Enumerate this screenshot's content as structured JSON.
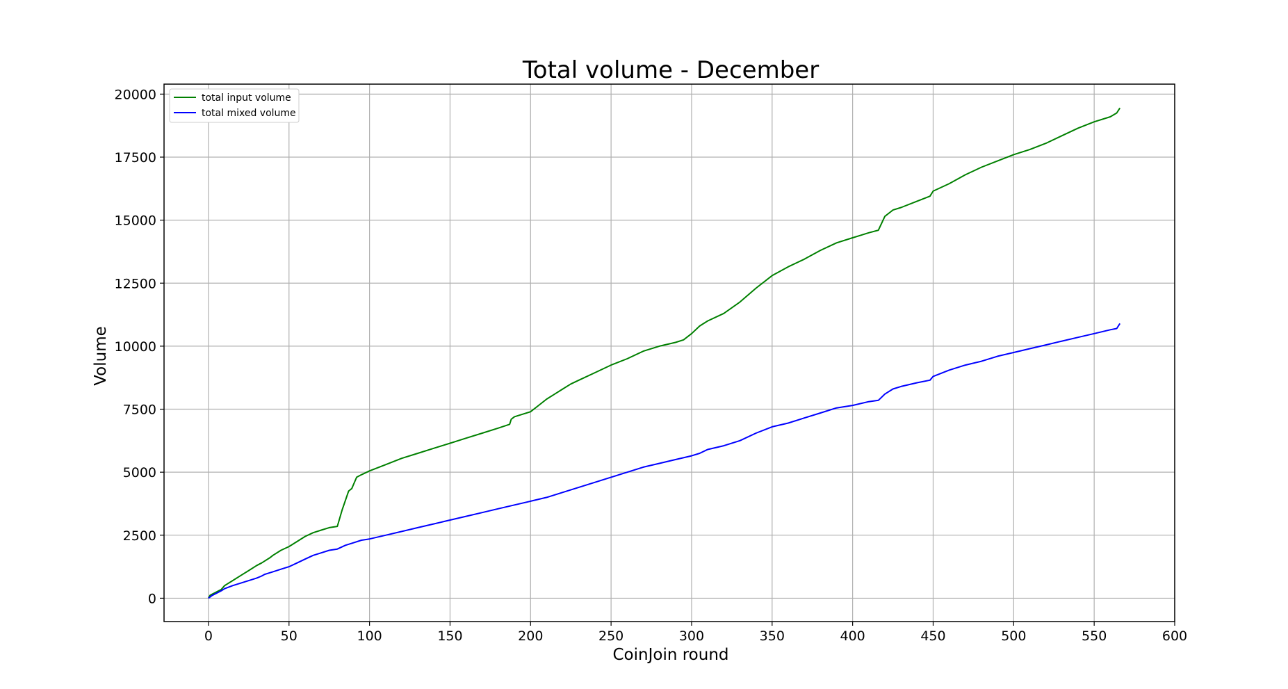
{
  "chart_data": {
    "type": "line",
    "title": "Total volume - December",
    "xlabel": "CoinJoin round",
    "ylabel": "Volume",
    "xlim": [
      -27.6,
      600
    ],
    "ylim": [
      -926,
      20396
    ],
    "xticks": [
      0,
      50,
      100,
      150,
      200,
      250,
      300,
      350,
      400,
      450,
      500,
      550,
      600
    ],
    "yticks": [
      0,
      2500,
      5000,
      7500,
      10000,
      12500,
      15000,
      17500,
      20000
    ],
    "grid": true,
    "legend_position": "top-left",
    "series": [
      {
        "name": "total input volume",
        "color": "#008000",
        "x": [
          0,
          1,
          5,
          8,
          10,
          15,
          20,
          25,
          30,
          33,
          35,
          38,
          40,
          45,
          50,
          55,
          60,
          65,
          70,
          75,
          80,
          83,
          87,
          89,
          92,
          95,
          100,
          110,
          120,
          130,
          140,
          150,
          160,
          170,
          180,
          187,
          188,
          190,
          195,
          200,
          205,
          210,
          215,
          220,
          225,
          230,
          240,
          250,
          260,
          270,
          280,
          290,
          295,
          300,
          305,
          310,
          320,
          330,
          340,
          350,
          360,
          370,
          380,
          390,
          400,
          405,
          410,
          416,
          420,
          425,
          430,
          440,
          448,
          450,
          460,
          470,
          480,
          490,
          500,
          510,
          520,
          530,
          540,
          550,
          560,
          564,
          566
        ],
        "y": [
          0,
          120,
          250,
          350,
          500,
          700,
          900,
          1100,
          1300,
          1400,
          1480,
          1600,
          1700,
          1900,
          2050,
          2250,
          2450,
          2600,
          2700,
          2800,
          2850,
          3500,
          4250,
          4350,
          4800,
          4900,
          5050,
          5300,
          5550,
          5750,
          5950,
          6150,
          6350,
          6550,
          6750,
          6900,
          7100,
          7200,
          7300,
          7400,
          7650,
          7900,
          8100,
          8300,
          8500,
          8650,
          8950,
          9250,
          9500,
          9800,
          10000,
          10150,
          10250,
          10500,
          10800,
          11000,
          11300,
          11750,
          12300,
          12800,
          13150,
          13450,
          13800,
          14100,
          14300,
          14400,
          14500,
          14600,
          15150,
          15400,
          15500,
          15750,
          15950,
          16150,
          16450,
          16800,
          17100,
          17350,
          17600,
          17800,
          18050,
          18350,
          18650,
          18900,
          19100,
          19250,
          19450
        ]
      },
      {
        "name": "total mixed volume",
        "color": "#0000ff",
        "x": [
          0,
          2,
          5,
          8,
          10,
          15,
          20,
          25,
          30,
          33,
          35,
          40,
          45,
          50,
          55,
          60,
          65,
          70,
          75,
          80,
          85,
          90,
          95,
          100,
          110,
          120,
          130,
          140,
          150,
          160,
          170,
          180,
          190,
          200,
          210,
          220,
          230,
          240,
          250,
          260,
          270,
          280,
          290,
          300,
          305,
          310,
          320,
          330,
          340,
          350,
          360,
          370,
          380,
          390,
          400,
          410,
          416,
          420,
          425,
          430,
          440,
          448,
          450,
          460,
          470,
          480,
          490,
          500,
          510,
          520,
          530,
          540,
          550,
          560,
          564,
          566
        ],
        "y": [
          0,
          100,
          200,
          300,
          380,
          500,
          600,
          700,
          800,
          880,
          950,
          1050,
          1150,
          1250,
          1400,
          1550,
          1700,
          1800,
          1900,
          1950,
          2100,
          2200,
          2300,
          2350,
          2500,
          2650,
          2800,
          2950,
          3100,
          3250,
          3400,
          3550,
          3700,
          3850,
          4000,
          4200,
          4400,
          4600,
          4800,
          5000,
          5200,
          5350,
          5500,
          5650,
          5750,
          5900,
          6050,
          6250,
          6550,
          6800,
          6950,
          7150,
          7350,
          7550,
          7650,
          7800,
          7850,
          8100,
          8300,
          8400,
          8550,
          8650,
          8800,
          9050,
          9250,
          9400,
          9600,
          9750,
          9900,
          10050,
          10200,
          10350,
          10500,
          10650,
          10700,
          10900
        ]
      }
    ]
  }
}
